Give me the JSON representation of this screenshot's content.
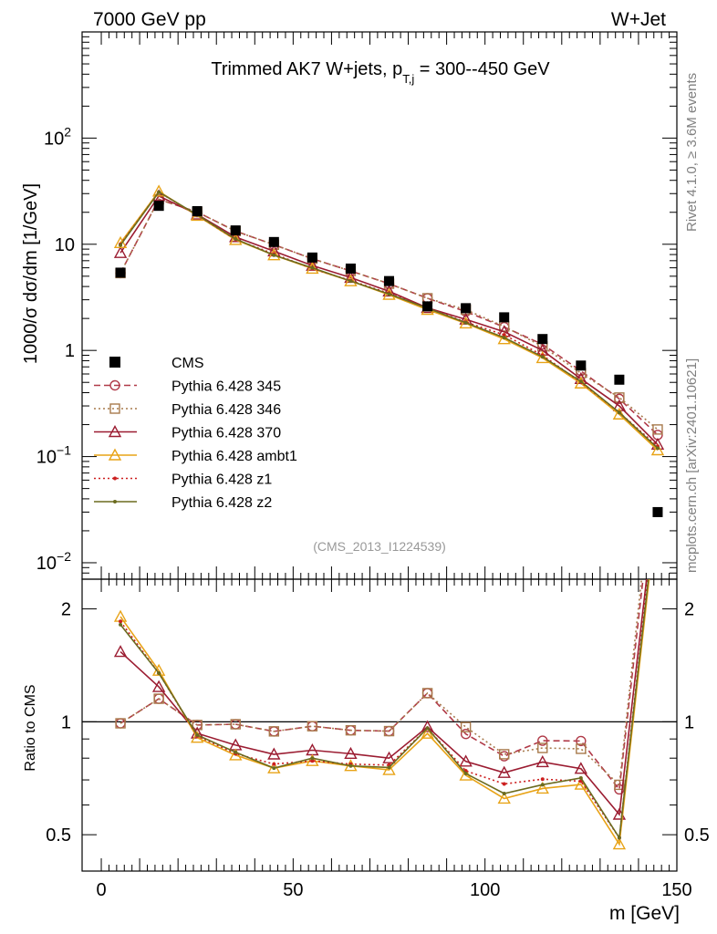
{
  "header": {
    "left": "7000 GeV pp",
    "right": "W+Jet"
  },
  "side_labels": {
    "rivet": "Rivet 4.1.0, ≥ 3.6M events",
    "mcplots": "mcplots.cern.ch [arXiv:2401.10621]"
  },
  "chart_data": {
    "type": "line",
    "title_parts": [
      "Trimmed AK7 W+jets, p",
      "T,j",
      " = 300--450 GeV"
    ],
    "watermark": "(CMS_2013_I1224539)",
    "xlabel": "m [GeV]",
    "ylabel_main": "1000/σ  dσ/dm [1/GeV]",
    "ylabel_ratio": "Ratio to CMS",
    "xlim": [
      -5,
      150
    ],
    "ylim_main": [
      0.007,
      1000
    ],
    "yscale_main": "log",
    "ylim_ratio": [
      0.4,
      2.4
    ],
    "yscale_ratio": "log",
    "x_ticks": [
      0,
      50,
      100,
      150
    ],
    "main_y_ticks": [
      {
        "v": 0.01,
        "b": "10",
        "e": "−2"
      },
      {
        "v": 0.1,
        "b": "10",
        "e": "−1"
      },
      {
        "v": 1,
        "b": "1",
        "e": ""
      },
      {
        "v": 10,
        "b": "10",
        "e": ""
      },
      {
        "v": 100,
        "b": "10",
        "e": "2"
      }
    ],
    "ratio_y_ticks": [
      {
        "v": 0.5,
        "label": "0.5"
      },
      {
        "v": 1,
        "label": "1"
      },
      {
        "v": 2,
        "label": "2"
      }
    ],
    "x": [
      5,
      15,
      25,
      35,
      45,
      55,
      65,
      75,
      85,
      95,
      105,
      115,
      125,
      135,
      145
    ],
    "data": {
      "name": "CMS",
      "color": "#000000",
      "values": [
        5.4,
        23,
        20.5,
        13.5,
        10.5,
        7.5,
        5.9,
        4.5,
        2.6,
        2.5,
        2.05,
        1.28,
        0.72,
        0.53,
        0.03
      ]
    },
    "series": [
      {
        "name": "Pythia 6.428 345",
        "color": "#b03a48",
        "dash": "7,4",
        "marker": "circle",
        "values": [
          5.35,
          26.5,
          20.1,
          13.3,
          9.9,
          7.3,
          5.6,
          4.25,
          3.1,
          2.32,
          1.66,
          1.14,
          0.64,
          0.35,
          0.16
        ]
      },
      {
        "name": "Pythia 6.428 346",
        "color": "#a87a4c",
        "dash": "2,3",
        "marker": "square",
        "values": [
          5.35,
          26.5,
          20.1,
          13.3,
          9.9,
          7.3,
          5.6,
          4.25,
          3.1,
          2.42,
          1.68,
          1.09,
          0.61,
          0.36,
          0.18
        ]
      },
      {
        "name": "Pythia 6.428 370",
        "color": "#9b1c31",
        "dash": "",
        "marker": "triangle",
        "values": [
          8.3,
          28.5,
          19.1,
          11.7,
          8.6,
          6.3,
          4.85,
          3.6,
          2.52,
          1.96,
          1.5,
          1.0,
          0.54,
          0.3,
          0.13
        ]
      },
      {
        "name": "Pythia 6.428 ambt1",
        "color": "#e8a317",
        "dash": "",
        "marker": "triangle",
        "values": [
          10.3,
          31.5,
          18.6,
          11.0,
          7.9,
          5.9,
          4.5,
          3.35,
          2.42,
          1.8,
          1.28,
          0.85,
          0.49,
          0.25,
          0.115
        ]
      },
      {
        "name": "Pythia 6.428 z1",
        "color": "#cc1f1f",
        "dash": "2,3",
        "marker": "dot",
        "values": [
          10.0,
          31.0,
          18.8,
          11.1,
          8.1,
          5.9,
          4.55,
          3.45,
          2.5,
          1.85,
          1.4,
          0.9,
          0.5,
          0.26,
          0.125
        ]
      },
      {
        "name": "Pythia 6.428 z2",
        "color": "#6b6b1f",
        "dash": "",
        "marker": "dot",
        "values": [
          9.8,
          31.0,
          18.9,
          11.2,
          7.9,
          6.0,
          4.5,
          3.4,
          2.5,
          1.82,
          1.32,
          0.87,
          0.51,
          0.26,
          0.12
        ]
      }
    ]
  }
}
